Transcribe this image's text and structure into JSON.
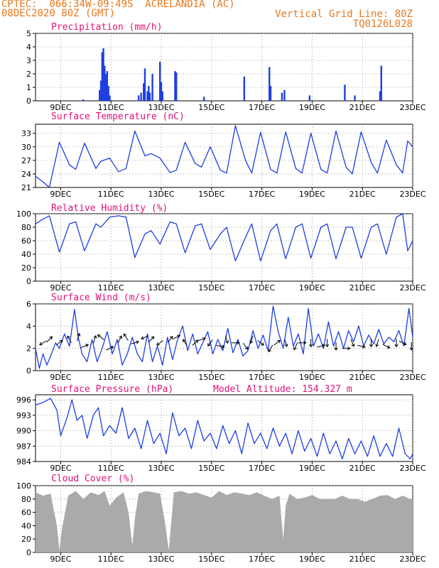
{
  "header": {
    "line1_left": "CPTEC:  066:34W-09:49S  ACRELANDIA (AC)",
    "line2_left": "08DEC2020 80Z (GMT)",
    "line1_right": "Vertical Grid Line: 80Z",
    "line2_right": "TQ0126L028"
  },
  "colors": {
    "header": "#e8781e",
    "title": "#e0137a",
    "series": "#1f3fe0",
    "cloud": "#aaaaaa"
  },
  "chart_data": [
    {
      "type": "bar",
      "title": "Precipitation (mm/h)",
      "x_tick_labels": [
        "9DEC",
        "11DEC",
        "13DEC",
        "15DEC",
        "17DEC",
        "19DEC",
        "21DEC",
        "23DEC"
      ],
      "xlim_days": [
        8.0,
        23.0
      ],
      "ylim": [
        0,
        5
      ],
      "yticks": [
        0,
        1,
        2,
        3,
        4,
        5
      ],
      "x_days": [
        9.9,
        10.55,
        10.6,
        10.65,
        10.7,
        10.75,
        10.8,
        10.85,
        10.9,
        10.95,
        12.1,
        12.2,
        12.3,
        12.35,
        12.45,
        12.5,
        12.55,
        12.65,
        12.95,
        13.0,
        13.05,
        13.55,
        13.6,
        14.7,
        16.3,
        17.3,
        17.35,
        17.8,
        17.9,
        18.9,
        20.3,
        20.7,
        21.7,
        21.75
      ],
      "values": [
        0.1,
        0.8,
        1.5,
        3.6,
        3.9,
        2.6,
        2.0,
        2.2,
        1.1,
        0.4,
        0.4,
        0.6,
        1.3,
        2.4,
        0.7,
        1.1,
        0.6,
        2.0,
        2.9,
        1.4,
        0.7,
        2.2,
        2.1,
        0.3,
        1.8,
        2.5,
        1.1,
        0.6,
        0.8,
        0.4,
        1.2,
        0.4,
        0.7,
        2.6
      ]
    },
    {
      "type": "line",
      "title": "Surface Temperature (nC)",
      "x_tick_labels": [
        "9DEC",
        "11DEC",
        "13DEC",
        "15DEC",
        "17DEC",
        "19DEC",
        "21DEC",
        "23DEC"
      ],
      "xlim_days": [
        8.0,
        23.0
      ],
      "ylim": [
        21,
        35
      ],
      "yticks": [
        21,
        24,
        27,
        30,
        33
      ],
      "x_days": [
        8.0,
        8.3,
        8.55,
        8.95,
        9.35,
        9.6,
        9.95,
        10.4,
        10.6,
        10.95,
        11.3,
        11.6,
        11.95,
        12.35,
        12.6,
        12.95,
        13.35,
        13.6,
        13.95,
        14.35,
        14.6,
        14.95,
        15.35,
        15.6,
        15.95,
        16.35,
        16.6,
        16.95,
        17.35,
        17.6,
        17.95,
        18.35,
        18.6,
        18.95,
        19.35,
        19.6,
        19.95,
        20.35,
        20.6,
        20.95,
        21.35,
        21.6,
        21.95,
        22.35,
        22.6,
        22.8,
        23.0
      ],
      "values": [
        23.5,
        22.2,
        21.0,
        31.0,
        26.0,
        25.0,
        30.8,
        25.2,
        26.8,
        27.5,
        24.5,
        25.2,
        33.5,
        28.0,
        28.5,
        27.5,
        24.3,
        24.8,
        31.0,
        26.3,
        25.5,
        30.0,
        24.8,
        24.2,
        34.7,
        27.0,
        24.2,
        33.2,
        25.0,
        24.2,
        33.3,
        25.2,
        24.2,
        33.0,
        25.0,
        24.2,
        33.5,
        25.5,
        24.0,
        33.3,
        26.5,
        24.2,
        31.5,
        26.0,
        24.2,
        31.3,
        30.0
      ]
    },
    {
      "type": "line",
      "title": "Relative Humidity (%)",
      "x_tick_labels": [
        "9DEC",
        "11DEC",
        "13DEC",
        "15DEC",
        "17DEC",
        "19DEC",
        "21DEC",
        "23DEC"
      ],
      "xlim_days": [
        8.0,
        23.0
      ],
      "ylim": [
        0,
        100
      ],
      "yticks": [
        0,
        20,
        40,
        60,
        80,
        100
      ],
      "x_days": [
        8.0,
        8.3,
        8.55,
        8.95,
        9.35,
        9.6,
        9.95,
        10.4,
        10.6,
        10.95,
        11.3,
        11.6,
        11.95,
        12.35,
        12.6,
        12.95,
        13.35,
        13.6,
        13.95,
        14.35,
        14.6,
        14.95,
        15.35,
        15.6,
        15.95,
        16.35,
        16.6,
        16.95,
        17.35,
        17.6,
        17.95,
        18.35,
        18.6,
        18.95,
        19.35,
        19.6,
        19.95,
        20.35,
        20.6,
        20.95,
        21.35,
        21.6,
        21.95,
        22.35,
        22.6,
        22.8,
        23.0
      ],
      "values": [
        85,
        92,
        97,
        43,
        85,
        88,
        45,
        85,
        80,
        95,
        97,
        95,
        35,
        70,
        75,
        55,
        88,
        85,
        42,
        82,
        85,
        47,
        70,
        80,
        30,
        65,
        85,
        30,
        75,
        85,
        33,
        80,
        85,
        34,
        80,
        85,
        33,
        80,
        80,
        34,
        80,
        85,
        40,
        95,
        100,
        45,
        60
      ]
    },
    {
      "type": "line",
      "title": "Surface Wind (m/s)",
      "x_tick_labels": [
        "9DEC",
        "11DEC",
        "13DEC",
        "15DEC",
        "17DEC",
        "19DEC",
        "21DEC",
        "23DEC"
      ],
      "xlim_days": [
        8.0,
        23.0
      ],
      "ylim": [
        0,
        6
      ],
      "yticks": [
        0,
        2,
        4,
        6
      ],
      "x_days": [
        8.0,
        8.15,
        8.3,
        8.45,
        8.6,
        8.8,
        8.95,
        9.15,
        9.35,
        9.55,
        9.7,
        9.85,
        10.05,
        10.25,
        10.45,
        10.65,
        10.85,
        11.05,
        11.25,
        11.45,
        11.65,
        11.85,
        12.05,
        12.25,
        12.45,
        12.65,
        12.85,
        13.05,
        13.25,
        13.45,
        13.65,
        13.85,
        14.05,
        14.25,
        14.45,
        14.65,
        14.85,
        15.05,
        15.25,
        15.45,
        15.65,
        15.85,
        16.05,
        16.25,
        16.45,
        16.65,
        16.85,
        17.05,
        17.25,
        17.45,
        17.65,
        17.85,
        18.05,
        18.25,
        18.45,
        18.65,
        18.85,
        19.05,
        19.25,
        19.45,
        19.65,
        19.85,
        20.05,
        20.25,
        20.45,
        20.65,
        20.85,
        21.05,
        21.25,
        21.45,
        21.65,
        21.85,
        22.05,
        22.25,
        22.45,
        22.65,
        22.85,
        23.0
      ],
      "values": [
        2.0,
        0.2,
        1.5,
        0.5,
        1.3,
        2.5,
        2.0,
        3.3,
        2.2,
        5.5,
        3.0,
        1.5,
        0.8,
        2.8,
        0.8,
        2.0,
        3.5,
        1.5,
        2.8,
        0.5,
        1.5,
        3.0,
        1.5,
        0.8,
        3.3,
        0.8,
        2.2,
        0.5,
        3.0,
        1.0,
        2.8,
        4.0,
        1.8,
        3.3,
        1.5,
        2.5,
        3.5,
        1.5,
        2.8,
        1.8,
        3.8,
        1.6,
        2.8,
        1.3,
        1.8,
        3.6,
        2.0,
        3.2,
        1.8,
        5.8,
        3.5,
        2.0,
        4.8,
        2.2,
        3.3,
        1.5,
        5.6,
        2.2,
        3.3,
        2.0,
        4.4,
        2.2,
        3.5,
        2.0,
        3.6,
        2.6,
        4.0,
        2.2,
        3.2,
        2.4,
        3.7,
        2.4,
        3.0,
        2.6,
        3.6,
        2.2,
        5.6,
        3.0
      ]
    },
    {
      "type": "line",
      "title": "Surface Pressure (hPa)",
      "annotation": "Model Altitude: 154.327 m",
      "x_tick_labels": [
        "9DEC",
        "11DEC",
        "13DEC",
        "15DEC",
        "17DEC",
        "19DEC",
        "21DEC",
        "23DEC"
      ],
      "xlim_days": [
        8.0,
        23.0
      ],
      "ylim": [
        984,
        997
      ],
      "yticks": [
        984,
        987,
        990,
        993,
        996
      ],
      "x_days": [
        8.0,
        8.3,
        8.6,
        8.85,
        9.0,
        9.25,
        9.45,
        9.65,
        9.85,
        10.05,
        10.3,
        10.5,
        10.7,
        10.95,
        11.2,
        11.45,
        11.7,
        11.95,
        12.2,
        12.45,
        12.7,
        12.95,
        13.2,
        13.45,
        13.7,
        13.95,
        14.2,
        14.45,
        14.7,
        14.95,
        15.2,
        15.45,
        15.7,
        15.95,
        16.2,
        16.45,
        16.7,
        16.95,
        17.2,
        17.45,
        17.7,
        17.95,
        18.2,
        18.45,
        18.7,
        18.95,
        19.2,
        19.45,
        19.7,
        19.95,
        20.2,
        20.45,
        20.7,
        20.95,
        21.2,
        21.45,
        21.7,
        21.95,
        22.2,
        22.45,
        22.7,
        22.9,
        23.0
      ],
      "values": [
        995.0,
        995.5,
        996.3,
        994.0,
        989.0,
        992.5,
        996.0,
        992.0,
        993.0,
        988.5,
        993.0,
        994.5,
        989.0,
        991.0,
        989.5,
        994.5,
        988.5,
        990.5,
        986.5,
        992.0,
        987.5,
        989.5,
        985.5,
        993.5,
        989.0,
        990.5,
        986.5,
        992.0,
        988.0,
        989.5,
        986.5,
        991.0,
        987.5,
        990.0,
        985.5,
        991.5,
        987.5,
        989.5,
        986.5,
        990.5,
        987.0,
        989.5,
        985.5,
        990.0,
        986.0,
        988.5,
        985.0,
        989.5,
        985.5,
        988.0,
        984.5,
        988.5,
        985.5,
        988.0,
        985.0,
        989.0,
        985.0,
        987.5,
        985.0,
        990.5,
        985.5,
        984.5,
        985.5
      ]
    },
    {
      "type": "area",
      "title": "Cloud Cover (%)",
      "x_tick_labels": [
        "9DEC",
        "11DEC",
        "13DEC",
        "15DEC",
        "17DEC",
        "19DEC",
        "21DEC",
        "23DEC"
      ],
      "xlim_days": [
        8.0,
        23.0
      ],
      "ylim": [
        0,
        100
      ],
      "yticks": [
        0,
        20,
        40,
        60,
        80,
        100
      ],
      "x_days": [
        8.0,
        8.3,
        8.6,
        8.85,
        8.95,
        9.05,
        9.3,
        9.6,
        9.9,
        10.2,
        10.5,
        10.75,
        10.95,
        11.2,
        11.5,
        11.7,
        11.85,
        11.95,
        12.1,
        12.4,
        12.7,
        12.95,
        13.15,
        13.3,
        13.5,
        13.8,
        14.1,
        14.4,
        14.7,
        15.0,
        15.3,
        15.6,
        15.9,
        16.2,
        16.5,
        16.8,
        17.1,
        17.4,
        17.7,
        17.85,
        17.95,
        18.1,
        18.4,
        18.7,
        19.0,
        19.3,
        19.6,
        19.9,
        20.2,
        20.5,
        20.8,
        21.1,
        21.4,
        21.7,
        22.0,
        22.3,
        22.6,
        22.9,
        23.0
      ],
      "values": [
        90,
        85,
        88,
        40,
        3,
        35,
        85,
        92,
        80,
        90,
        86,
        92,
        70,
        82,
        90,
        60,
        10,
        50,
        88,
        92,
        90,
        88,
        45,
        3,
        90,
        92,
        88,
        90,
        86,
        82,
        92,
        86,
        90,
        88,
        86,
        90,
        85,
        80,
        85,
        20,
        70,
        88,
        80,
        82,
        86,
        80,
        80,
        80,
        85,
        80,
        80,
        76,
        80,
        85,
        86,
        80,
        85,
        80,
        80
      ]
    },
    {
      "type": "wind-barbs",
      "description_panel": "Surface Wind (m/s)",
      "x_days": [
        8.3,
        8.55,
        8.95,
        9.35,
        9.7,
        9.95,
        10.35,
        10.6,
        10.95,
        11.35,
        11.6,
        11.95,
        12.35,
        12.6,
        12.95,
        13.35,
        13.6,
        13.95,
        14.35,
        14.6,
        14.95,
        15.35,
        15.6,
        15.95,
        16.35,
        16.6,
        16.95,
        17.35,
        17.6,
        17.95,
        18.35,
        18.6,
        18.95,
        19.35,
        19.6,
        19.95,
        20.35,
        20.6,
        20.95,
        21.35,
        21.6,
        21.95,
        22.35,
        22.6,
        22.95
      ],
      "level_mps": [
        2.5,
        2.8,
        2.5,
        2.8,
        3.0,
        2.2,
        2.8,
        3.0,
        2.0,
        2.8,
        3.0,
        2.5,
        3.0,
        2.8,
        2.5,
        2.8,
        3.0,
        2.5,
        2.5,
        2.8,
        2.5,
        2.2,
        2.8,
        2.5,
        2.2,
        2.8,
        2.5,
        2.0,
        2.5,
        2.5,
        2.2,
        2.5,
        2.5,
        2.2,
        2.5,
        2.2,
        2.0,
        2.5,
        2.2,
        2.5,
        2.5,
        2.2,
        2.5,
        2.5,
        2.2
      ],
      "u": [
        -1,
        1,
        1,
        -0.5,
        0.3,
        1,
        0.3,
        -0.8,
        1,
        0.5,
        -0.5,
        1,
        -1,
        1,
        -0.8,
        0.8,
        1,
        -0.5,
        0.8,
        1,
        -0.6,
        1,
        0.3,
        1,
        0.6,
        -0.3,
        0.8,
        -0.6,
        0.5,
        0.3,
        -0.5,
        0.8,
        0,
        0.8,
        0,
        0,
        1,
        0.4,
        0.8,
        0,
        -0.3,
        0.6,
        0,
        0.6,
        0
      ],
      "v": [
        -0.6,
        1,
        0.8,
        0.9,
        1,
        0.4,
        1,
        0.6,
        0.5,
        1,
        0.8,
        0.3,
        -0.4,
        1,
        -0.6,
        1,
        0.5,
        0.8,
        0.7,
        0.3,
        -0.8,
        -0.2,
        -1,
        0,
        -0.8,
        -1,
        -0.6,
        -1,
        0.4,
        -1,
        -1,
        0,
        -1,
        0.2,
        -1,
        -1,
        0,
        -1,
        -0.2,
        -1,
        -1,
        -0.3,
        -1,
        -0.3,
        -1
      ]
    }
  ]
}
